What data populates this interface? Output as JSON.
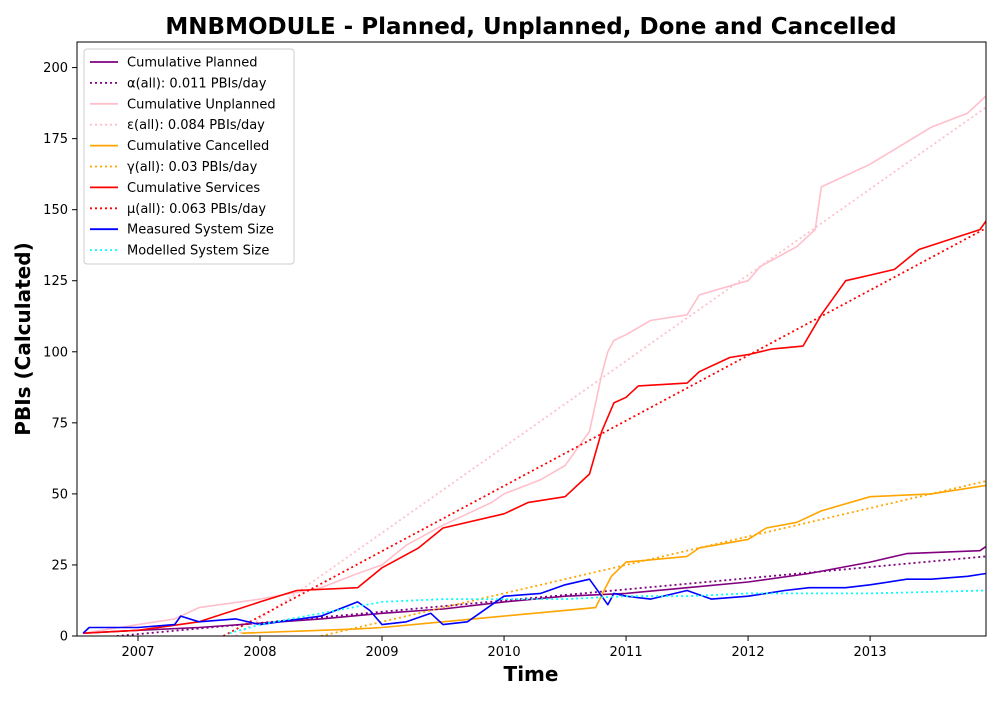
{
  "chart_data": {
    "type": "line",
    "title": "MNBMODULE - Planned, Unplanned, Done  and Cancelled",
    "xlabel": "Time",
    "ylabel": "PBIs (Calculated)",
    "xlim": [
      2006.5,
      2013.95
    ],
    "ylim": [
      0,
      209
    ],
    "x_ticks": [
      2007,
      2008,
      2009,
      2010,
      2011,
      2012,
      2013
    ],
    "x_tick_labels": [
      "2007",
      "2008",
      "2009",
      "2010",
      "2011",
      "2012",
      "2013"
    ],
    "y_ticks": [
      0,
      25,
      50,
      75,
      100,
      125,
      150,
      175,
      200
    ],
    "y_tick_labels": [
      "0",
      "25",
      "50",
      "75",
      "100",
      "125",
      "150",
      "175",
      "200"
    ],
    "grid": false,
    "legend_position": "top-left",
    "series": [
      {
        "name": "Cumulative Planned",
        "color": "#800080",
        "style": "solid",
        "x": [
          2006.55,
          2007.0,
          2007.5,
          2008.0,
          2008.5,
          2009.0,
          2009.5,
          2010.0,
          2010.5,
          2011.0,
          2011.5,
          2012.0,
          2012.5,
          2013.0,
          2013.3,
          2013.9,
          2013.95
        ],
        "y": [
          1,
          2,
          3,
          4.5,
          6,
          8,
          9.5,
          12,
          14,
          15,
          17,
          19,
          22,
          26,
          29,
          30,
          31.5
        ]
      },
      {
        "name": "α(all): 0.011 PBIs/day",
        "color": "#800080",
        "style": "dotted",
        "x": [
          2006.5,
          2013.95
        ],
        "y": [
          -1.3,
          28
        ]
      },
      {
        "name": "Cumulative Unplanned",
        "color": "#ffc0cb",
        "style": "solid",
        "x": [
          2006.55,
          2007.0,
          2007.3,
          2007.5,
          2008.0,
          2008.5,
          2008.8,
          2009.0,
          2009.2,
          2009.5,
          2009.9,
          2010.0,
          2010.3,
          2010.5,
          2010.7,
          2010.8,
          2010.85,
          2010.9,
          2011.0,
          2011.2,
          2011.5,
          2011.6,
          2012.0,
          2012.1,
          2012.4,
          2012.55,
          2012.6,
          2012.8,
          2013.0,
          2013.5,
          2013.8,
          2013.95
        ],
        "y": [
          1,
          4,
          6,
          10,
          13,
          17,
          22,
          25,
          32,
          39,
          47,
          50,
          55,
          60,
          72,
          92,
          100,
          104,
          106,
          111,
          113,
          120,
          125,
          130,
          137,
          143,
          158,
          162,
          166,
          179,
          184,
          190
        ]
      },
      {
        "name": "ε(all): 0.084 PBIs/day",
        "color": "#ffc0cb",
        "style": "dotted",
        "x": [
          2007.8,
          2013.95
        ],
        "y": [
          0,
          186
        ]
      },
      {
        "name": "Cumulative Cancelled",
        "color": "#ffa500",
        "style": "solid",
        "x": [
          2007.85,
          2008.5,
          2008.8,
          2009.0,
          2009.5,
          2010.0,
          2010.5,
          2010.75,
          2010.82,
          2010.88,
          2011.0,
          2011.5,
          2011.6,
          2012.0,
          2012.15,
          2012.4,
          2012.6,
          2013.0,
          2013.5,
          2013.95
        ],
        "y": [
          1,
          2,
          2.5,
          3,
          5,
          7,
          9,
          10,
          16,
          21,
          26,
          28,
          31,
          34,
          38,
          40,
          44,
          49,
          50,
          53
        ]
      },
      {
        "name": "γ(all): 0.03 PBIs/day",
        "color": "#ffa500",
        "style": "dotted",
        "x": [
          2008.5,
          2013.95
        ],
        "y": [
          0,
          54.5
        ]
      },
      {
        "name": "Cumulative Services",
        "color": "#ff0000",
        "style": "solid",
        "x": [
          2006.55,
          2007.0,
          2007.5,
          2008.0,
          2008.3,
          2008.8,
          2009.0,
          2009.3,
          2009.5,
          2010.0,
          2010.2,
          2010.5,
          2010.7,
          2010.8,
          2010.9,
          2011.0,
          2011.1,
          2011.5,
          2011.6,
          2011.85,
          2012.0,
          2012.2,
          2012.45,
          2012.6,
          2012.8,
          2013.0,
          2013.2,
          2013.4,
          2013.9,
          2013.95
        ],
        "y": [
          1,
          2,
          5,
          12,
          16,
          17,
          24,
          31,
          38,
          43,
          47,
          49,
          57,
          72,
          82,
          84,
          88,
          89,
          93,
          98,
          99,
          101,
          102,
          113,
          125,
          127,
          129,
          136,
          143,
          146
        ]
      },
      {
        "name": "μ(all): 0.063 PBIs/day",
        "color": "#ff0000",
        "style": "dotted",
        "x": [
          2007.7,
          2013.95
        ],
        "y": [
          0,
          143.5
        ]
      },
      {
        "name": "Measured System Size",
        "color": "#0000ff",
        "style": "solid",
        "x": [
          2006.55,
          2006.6,
          2007.0,
          2007.3,
          2007.35,
          2007.5,
          2007.8,
          2008.0,
          2008.5,
          2008.8,
          2008.9,
          2009.0,
          2009.2,
          2009.4,
          2009.5,
          2009.7,
          2009.8,
          2010.0,
          2010.3,
          2010.5,
          2010.7,
          2010.8,
          2010.85,
          2010.9,
          2011.0,
          2011.2,
          2011.5,
          2011.7,
          2012.0,
          2012.3,
          2012.5,
          2012.8,
          2013.0,
          2013.3,
          2013.5,
          2013.8,
          2013.95
        ],
        "y": [
          1,
          3,
          3,
          4,
          7,
          5,
          6,
          4,
          7,
          12,
          9,
          4,
          5,
          8,
          4,
          5,
          8,
          14,
          15,
          18,
          20,
          14,
          11,
          15,
          14,
          13,
          16,
          13,
          14,
          16,
          17,
          17,
          18,
          20,
          20,
          21,
          22
        ]
      },
      {
        "name": "Modelled System Size",
        "color": "#00ffff",
        "style": "dotted",
        "x": [
          2007.75,
          2008.0,
          2008.5,
          2009.0,
          2009.5,
          2010.0,
          2010.5,
          2011.0,
          2011.5,
          2012.0,
          2012.5,
          2013.0,
          2013.5,
          2013.95
        ],
        "y": [
          1,
          4,
          8,
          12,
          13,
          13,
          13,
          14,
          14,
          15,
          15,
          15,
          15.5,
          16
        ]
      }
    ]
  }
}
